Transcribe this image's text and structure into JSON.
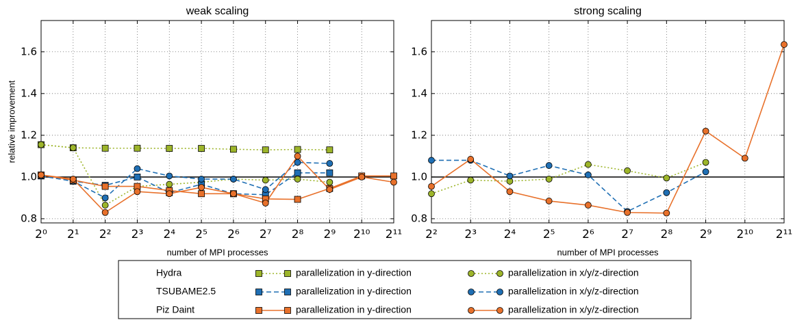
{
  "chart_data": [
    {
      "type": "line",
      "title": "weak scaling",
      "x_label": "number of MPI processes",
      "y_label": "relative improvement",
      "x": [
        1,
        2,
        4,
        8,
        16,
        32,
        64,
        128,
        256,
        512,
        1024,
        2048
      ],
      "xscale": "log2",
      "xlim": [
        1,
        2048
      ],
      "xticks": [
        {
          "value": 1,
          "label": "2⁰"
        },
        {
          "value": 2,
          "label": "2¹"
        },
        {
          "value": 4,
          "label": "2²"
        },
        {
          "value": 8,
          "label": "2³"
        },
        {
          "value": 16,
          "label": "2⁴"
        },
        {
          "value": 32,
          "label": "2⁵"
        },
        {
          "value": 64,
          "label": "2⁶"
        },
        {
          "value": 128,
          "label": "2⁷"
        },
        {
          "value": 256,
          "label": "2⁸"
        },
        {
          "value": 512,
          "label": "2⁹"
        },
        {
          "value": 1024,
          "label": "2¹⁰"
        },
        {
          "value": 2048,
          "label": "2¹¹"
        }
      ],
      "ylim": [
        0.78,
        1.75
      ],
      "yticks": [
        0.8,
        {
          "value": 1,
          "label": "1.0"
        },
        1.2,
        1.4,
        1.6
      ],
      "grid": true,
      "reference_line": 1,
      "series": [
        {
          "group": "Hydra",
          "name": "parallelization in y-direction",
          "color": "#9db52a",
          "linestyle": "dotted",
          "marker": "square",
          "values": [
            1.155,
            1.14,
            1.138,
            1.138,
            1.137,
            1.137,
            1.133,
            1.13,
            1.132,
            1.13,
            null,
            null
          ]
        },
        {
          "group": "Hydra",
          "name": "parallelization in x/y/z-direction",
          "color": "#9db52a",
          "linestyle": "dotted",
          "marker": "circle",
          "values": [
            1.155,
            1.14,
            0.865,
            0.955,
            0.965,
            0.975,
            0.99,
            0.985,
            0.99,
            0.975,
            null,
            null
          ]
        },
        {
          "group": "TSUBAME2.5",
          "name": "parallelization in y-direction",
          "color": "#1f6fb4",
          "linestyle": "dashed",
          "marker": "square",
          "values": [
            1.005,
            0.98,
            0.96,
            1.0,
            0.925,
            0.965,
            0.92,
            0.915,
            1.02,
            1.02,
            null,
            null
          ]
        },
        {
          "group": "TSUBAME2.5",
          "name": "parallelization in x/y/z-direction",
          "color": "#1f6fb4",
          "linestyle": "dashed",
          "marker": "circle",
          "values": [
            1.005,
            0.98,
            0.9,
            1.04,
            1.005,
            0.99,
            0.99,
            0.94,
            1.07,
            1.065,
            null,
            null
          ]
        },
        {
          "group": "Piz Daint",
          "name": "parallelization in y-direction",
          "color": "#e8712b",
          "linestyle": "solid",
          "marker": "square",
          "values": [
            1.01,
            0.985,
            0.955,
            0.955,
            0.935,
            0.92,
            0.92,
            0.895,
            0.893,
            0.945,
            1.005,
            1.005
          ]
        },
        {
          "group": "Piz Daint",
          "name": "parallelization in x/y/z-direction",
          "color": "#e8712b",
          "linestyle": "solid",
          "marker": "circle",
          "values": [
            1.01,
            0.99,
            0.83,
            0.93,
            0.92,
            0.95,
            0.92,
            0.875,
            1.1,
            0.94,
            1.0,
            0.975
          ]
        }
      ]
    },
    {
      "type": "line",
      "title": "strong scaling",
      "x_label": "number of MPI processes",
      "x": [
        4,
        8,
        16,
        32,
        64,
        128,
        256,
        512,
        1024,
        2048
      ],
      "xscale": "log2",
      "xlim": [
        4,
        2048
      ],
      "xticks": [
        {
          "value": 4,
          "label": "2²"
        },
        {
          "value": 8,
          "label": "2³"
        },
        {
          "value": 16,
          "label": "2⁴"
        },
        {
          "value": 32,
          "label": "2⁵"
        },
        {
          "value": 64,
          "label": "2⁶"
        },
        {
          "value": 128,
          "label": "2⁷"
        },
        {
          "value": 256,
          "label": "2⁸"
        },
        {
          "value": 512,
          "label": "2⁹"
        },
        {
          "value": 1024,
          "label": "2¹⁰"
        },
        {
          "value": 2048,
          "label": "2¹¹"
        }
      ],
      "ylim": [
        0.78,
        1.75
      ],
      "yticks": [
        0.8,
        {
          "value": 1,
          "label": "1.0"
        },
        1.2,
        1.4,
        1.6
      ],
      "grid": true,
      "reference_line": 1,
      "series": [
        {
          "group": "Hydra",
          "name": "parallelization in x/y/z-direction",
          "color": "#9db52a",
          "linestyle": "dotted",
          "marker": "circle",
          "values": [
            0.92,
            0.985,
            0.98,
            0.99,
            1.06,
            1.03,
            0.995,
            1.07,
            null,
            null
          ]
        },
        {
          "group": "TSUBAME2.5",
          "name": "parallelization in x/y/z-direction",
          "color": "#1f6fb4",
          "linestyle": "dashed",
          "marker": "circle",
          "values": [
            1.08,
            1.08,
            1.005,
            1.055,
            1.01,
            0.835,
            0.925,
            1.025,
            null,
            null
          ]
        },
        {
          "group": "Piz Daint",
          "name": "parallelization in x/y/z-direction",
          "color": "#e8712b",
          "linestyle": "solid",
          "marker": "circle",
          "values": [
            0.955,
            1.085,
            0.93,
            0.885,
            0.865,
            0.83,
            0.827,
            1.22,
            1.09,
            1.635
          ]
        }
      ]
    }
  ]
}
